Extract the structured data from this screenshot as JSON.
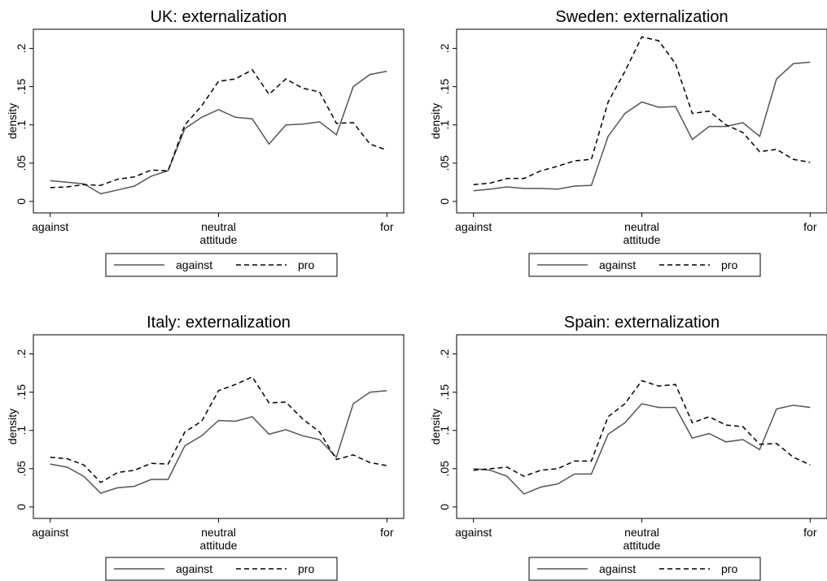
{
  "chart_data": [
    {
      "type": "line",
      "title": "UK: externalization",
      "x_label": "attitude",
      "y_label": "density",
      "x": [
        0,
        0.5,
        1,
        1.5,
        2,
        2.5,
        3,
        3.5,
        4,
        4.5,
        5,
        5.5,
        6,
        6.5,
        7,
        7.5,
        8,
        8.5,
        9,
        9.5,
        10
      ],
      "xlim": [
        -0.5,
        10.5
      ],
      "xticks": [
        {
          "value": 0,
          "label": "against"
        },
        {
          "value": 5,
          "label": "neutral"
        },
        {
          "value": 10,
          "label": "for"
        }
      ],
      "ylim": [
        -0.015,
        0.225
      ],
      "yticks": [
        0,
        {
          "value": 0.05,
          "label": ".05"
        },
        {
          "value": 0.1,
          "label": ".1"
        },
        {
          "value": 0.15,
          "label": ".15"
        },
        {
          "value": 0.2,
          "label": ".2"
        }
      ],
      "legend": "bottom",
      "series": [
        {
          "name": "against",
          "color": "#555555",
          "style": "solid",
          "values": [
            0.027,
            0.025,
            0.023,
            0.01,
            0.015,
            0.02,
            0.033,
            0.04,
            0.095,
            0.11,
            0.12,
            0.11,
            0.108,
            0.075,
            0.1,
            0.101,
            0.104,
            0.087,
            0.15,
            0.166,
            0.17
          ]
        },
        {
          "name": "pro",
          "color": "#000000",
          "style": "dashed",
          "values": [
            0.018,
            0.019,
            0.022,
            0.021,
            0.029,
            0.032,
            0.041,
            0.04,
            0.1,
            0.125,
            0.157,
            0.16,
            0.172,
            0.14,
            0.16,
            0.148,
            0.143,
            0.102,
            0.103,
            0.075,
            0.067
          ]
        }
      ]
    },
    {
      "type": "line",
      "title": "Sweden: externalization",
      "x_label": "attitude",
      "y_label": "density",
      "x": [
        0,
        0.5,
        1,
        1.5,
        2,
        2.5,
        3,
        3.5,
        4,
        4.5,
        5,
        5.5,
        6,
        6.5,
        7,
        7.5,
        8,
        8.5,
        9,
        9.5,
        10
      ],
      "xlim": [
        -0.5,
        10.5
      ],
      "xticks": [
        {
          "value": 0,
          "label": "against"
        },
        {
          "value": 5,
          "label": "neutral"
        },
        {
          "value": 10,
          "label": "for"
        }
      ],
      "ylim": [
        -0.015,
        0.225
      ],
      "yticks": [
        0,
        {
          "value": 0.05,
          "label": ".05"
        },
        {
          "value": 0.1,
          "label": ".1"
        },
        {
          "value": 0.15,
          "label": ".15"
        },
        {
          "value": 0.2,
          "label": ".2"
        }
      ],
      "legend": "bottom",
      "series": [
        {
          "name": "against",
          "color": "#555555",
          "style": "solid",
          "values": [
            0.014,
            0.016,
            0.019,
            0.017,
            0.017,
            0.016,
            0.02,
            0.021,
            0.085,
            0.115,
            0.13,
            0.123,
            0.124,
            0.081,
            0.098,
            0.098,
            0.103,
            0.085,
            0.16,
            0.18,
            0.182
          ]
        },
        {
          "name": "pro",
          "color": "#000000",
          "style": "dashed",
          "values": [
            0.022,
            0.024,
            0.03,
            0.03,
            0.04,
            0.046,
            0.053,
            0.055,
            0.13,
            0.17,
            0.215,
            0.21,
            0.18,
            0.115,
            0.118,
            0.1,
            0.09,
            0.065,
            0.068,
            0.055,
            0.051
          ]
        }
      ]
    },
    {
      "type": "line",
      "title": "Italy: externalization",
      "x_label": "attitude",
      "y_label": "density",
      "x": [
        0,
        0.5,
        1,
        1.5,
        2,
        2.5,
        3,
        3.5,
        4,
        4.5,
        5,
        5.5,
        6,
        6.5,
        7,
        7.5,
        8,
        8.5,
        9,
        9.5,
        10
      ],
      "xlim": [
        -0.5,
        10.5
      ],
      "xticks": [
        {
          "value": 0,
          "label": "against"
        },
        {
          "value": 5,
          "label": "neutral"
        },
        {
          "value": 10,
          "label": "for"
        }
      ],
      "ylim": [
        -0.015,
        0.225
      ],
      "yticks": [
        0,
        {
          "value": 0.05,
          "label": ".05"
        },
        {
          "value": 0.1,
          "label": ".1"
        },
        {
          "value": 0.15,
          "label": ".15"
        },
        {
          "value": 0.2,
          "label": ".2"
        }
      ],
      "legend": "bottom",
      "series": [
        {
          "name": "against",
          "color": "#555555",
          "style": "solid",
          "values": [
            0.056,
            0.052,
            0.04,
            0.018,
            0.025,
            0.027,
            0.036,
            0.036,
            0.08,
            0.093,
            0.113,
            0.112,
            0.118,
            0.095,
            0.101,
            0.093,
            0.088,
            0.065,
            0.135,
            0.15,
            0.152
          ]
        },
        {
          "name": "pro",
          "color": "#000000",
          "style": "dashed",
          "values": [
            0.065,
            0.063,
            0.055,
            0.032,
            0.045,
            0.048,
            0.057,
            0.056,
            0.098,
            0.112,
            0.152,
            0.16,
            0.17,
            0.136,
            0.137,
            0.115,
            0.098,
            0.062,
            0.068,
            0.058,
            0.054
          ]
        }
      ]
    },
    {
      "type": "line",
      "title": "Spain: externalization",
      "x_label": "attitude",
      "y_label": "density",
      "x": [
        0,
        0.5,
        1,
        1.5,
        2,
        2.5,
        3,
        3.5,
        4,
        4.5,
        5,
        5.5,
        6,
        6.5,
        7,
        7.5,
        8,
        8.5,
        9,
        9.5,
        10
      ],
      "xlim": [
        -0.5,
        10.5
      ],
      "xticks": [
        {
          "value": 0,
          "label": "against"
        },
        {
          "value": 5,
          "label": "neutral"
        },
        {
          "value": 10,
          "label": "for"
        }
      ],
      "ylim": [
        -0.015,
        0.225
      ],
      "yticks": [
        0,
        {
          "value": 0.05,
          "label": ".05"
        },
        {
          "value": 0.1,
          "label": ".1"
        },
        {
          "value": 0.15,
          "label": ".15"
        },
        {
          "value": 0.2,
          "label": ".2"
        }
      ],
      "legend": "bottom",
      "series": [
        {
          "name": "against",
          "color": "#555555",
          "style": "solid",
          "values": [
            0.05,
            0.048,
            0.04,
            0.017,
            0.026,
            0.03,
            0.043,
            0.043,
            0.095,
            0.11,
            0.135,
            0.13,
            0.13,
            0.09,
            0.096,
            0.085,
            0.088,
            0.075,
            0.128,
            0.133,
            0.13
          ]
        },
        {
          "name": "pro",
          "color": "#000000",
          "style": "dashed",
          "values": [
            0.048,
            0.05,
            0.052,
            0.04,
            0.048,
            0.05,
            0.06,
            0.06,
            0.118,
            0.135,
            0.165,
            0.158,
            0.16,
            0.11,
            0.118,
            0.107,
            0.105,
            0.082,
            0.083,
            0.065,
            0.055
          ]
        }
      ]
    }
  ]
}
